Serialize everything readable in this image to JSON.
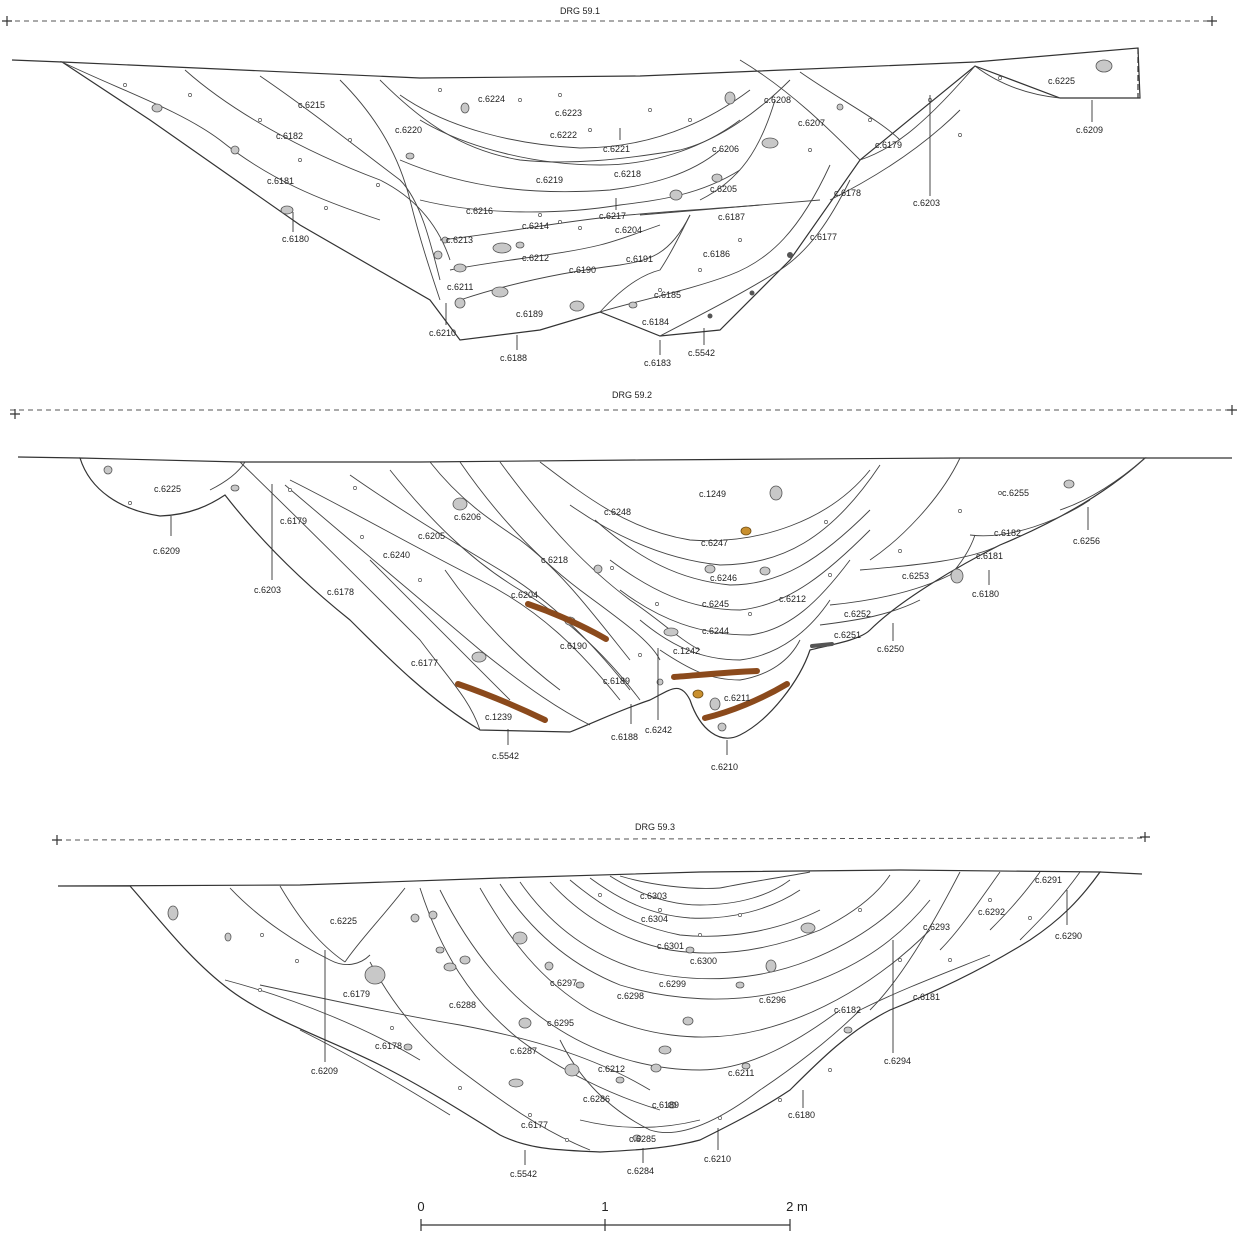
{
  "sections": [
    {
      "title": "DRG 59.1",
      "labels": [
        "c.6225",
        "c.6209",
        "c.6215",
        "c.6182",
        "c.6181",
        "c.6180",
        "c.6220",
        "c.6224",
        "c.6223",
        "c.6222",
        "c.6221",
        "c.6208",
        "c.6207",
        "c.6206",
        "c.6179",
        "c.6203",
        "c.6219",
        "c.6218",
        "c.6205",
        "c.6178",
        "c.6216",
        "c.6217",
        "c.6214",
        "c.6204",
        "c.6187",
        "c.6177",
        "c.6213",
        "c.6212",
        "c.6190",
        "c.6191",
        "c.6186",
        "c.6211",
        "c.6189",
        "c.6185",
        "c.6184",
        "c.6210",
        "c.6188",
        "c.6183",
        "c.5542"
      ]
    },
    {
      "title": "DRG 59.2",
      "labels": [
        "c.6225",
        "c.6209",
        "c.6179",
        "c.6203",
        "c.6206",
        "c.6205",
        "c.6240",
        "c.6178",
        "c.6248",
        "c.1249",
        "c.6247",
        "c.6255",
        "c.6182",
        "c.6256",
        "c.6181",
        "c.6180",
        "c.6218",
        "c.6246",
        "c.6253",
        "c.6204",
        "c.6245",
        "c.6212",
        "c.6252",
        "c.6190",
        "c.6244",
        "c.6251",
        "c.6250",
        "c.1242",
        "c.6177",
        "c.6189",
        "c.6211",
        "c.1239",
        "c.6188",
        "c.6242",
        "c.5542",
        "c.6210"
      ]
    },
    {
      "title": "DRG 59.3",
      "labels": [
        "c.6303",
        "c.6291",
        "c.6225",
        "c.6304",
        "c.6292",
        "c.6293",
        "c.6290",
        "c.6301",
        "c.6300",
        "c.6297",
        "c.6299",
        "c.6179",
        "c.6298",
        "c.6288",
        "c.6296",
        "c.6181",
        "c.6182",
        "c.6295",
        "c.6178",
        "c.6287",
        "c.6294",
        "c.6209",
        "c.6212",
        "c.6211",
        "c.6286",
        "c.6189",
        "c.6180",
        "c.6177",
        "c.6285",
        "c.6210",
        "c.5542",
        "c.6284"
      ]
    }
  ],
  "scale": {
    "ticks": [
      "0",
      "1",
      "2 m"
    ]
  },
  "colors": {
    "fill": "#c8c8c8",
    "wood": "#8b4a1c",
    "ochre": "#c9902f",
    "line": "#333333"
  }
}
